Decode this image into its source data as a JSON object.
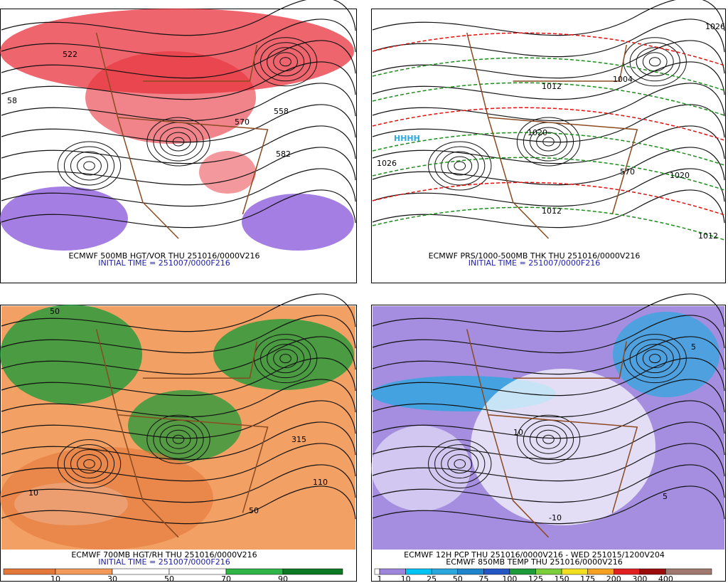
{
  "panels": [
    {
      "caption": "ECMWF 500MB HGT/VOR THU 251016/0000V216",
      "initial_time": "INITIAL TIME = 251007/0000F216",
      "contour_labels": [
        "58",
        "522",
        "570",
        "558",
        "582"
      ]
    },
    {
      "caption": "ECMWF PRS/1000-500MB THK THU 251016/0000V216",
      "initial_time": "INITIAL TIME = 251007/0000F216",
      "high_marks": "HHHH",
      "contour_labels": [
        "1026",
        "1012",
        "1020",
        "1020",
        "1004",
        "1012",
        "1012",
        "570",
        "1026"
      ]
    },
    {
      "caption": "ECMWF 700MB HGT/RH THU 251016/0000V216",
      "initial_time": "INITIAL TIME = 251007/0000F216",
      "contour_labels": [
        "10",
        "50",
        "315",
        "110",
        "50"
      ],
      "colorbar": {
        "labels": [
          10,
          30,
          50,
          70,
          90
        ],
        "colors": [
          "#e4773a",
          "#f39a5a",
          "#ffffff",
          "#ffffff",
          "#2fb548",
          "#0c7a24"
        ]
      }
    },
    {
      "caption": "ECMWF 12H PCP THU 251016/0000V216 - WED 251015/1200V204",
      "caption2": "ECMWF 850MB TEMP THU 251016/0000V216",
      "contour_labels": [
        "5",
        "10",
        "-10",
        "5"
      ],
      "colorbar": {
        "labels": [
          1,
          10,
          25,
          50,
          75,
          100,
          125,
          150,
          175,
          200,
          300,
          400
        ],
        "colors": [
          "#ffffff",
          "#9d86dc",
          "#00c4f4",
          "#2aa8de",
          "#1e84cc",
          "#2456c4",
          "#1d9a3a",
          "#7ccd3a",
          "#f2e020",
          "#f5a020",
          "#e02020",
          "#9c0c0c",
          "#a0786e"
        ]
      }
    }
  ]
}
